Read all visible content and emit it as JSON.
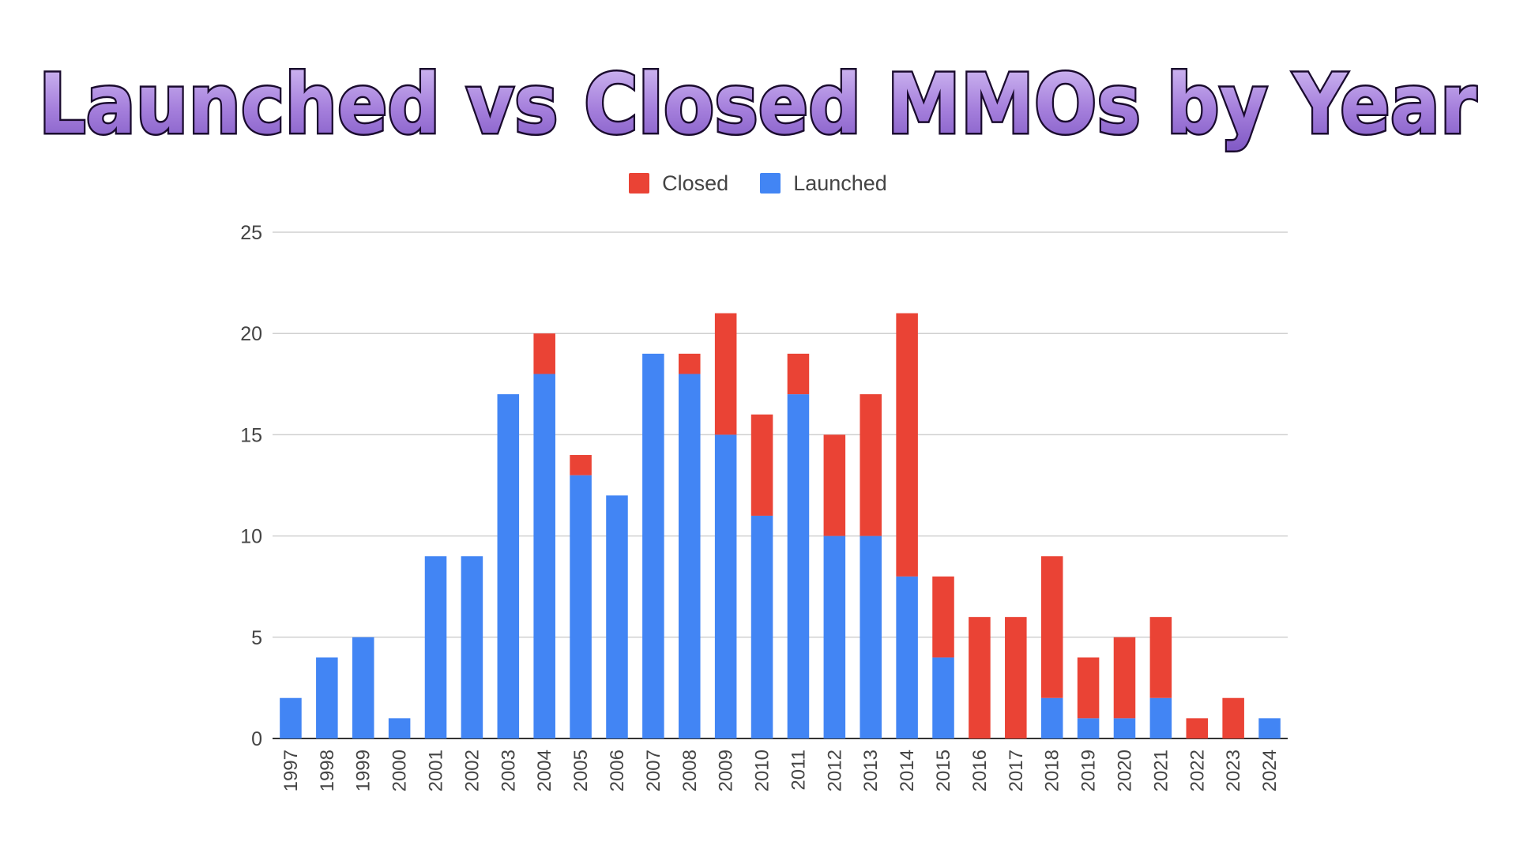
{
  "title": "Launched vs Closed MMOs by Year",
  "colors": {
    "closed": "#ea4335",
    "launched": "#4285f4",
    "title_fill": "#b292e0",
    "title_outline": "#1a0b2e"
  },
  "chart_data": {
    "type": "bar",
    "stacked": true,
    "title": "Launched vs Closed MMOs by Year",
    "xlabel": "",
    "ylabel": "",
    "ylim": [
      0,
      25
    ],
    "yticks": [
      0,
      5,
      10,
      15,
      20,
      25
    ],
    "grid": true,
    "legend": "top-center",
    "categories": [
      "1997",
      "1998",
      "1999",
      "2000",
      "2001",
      "2002",
      "2003",
      "2004",
      "2005",
      "2006",
      "2007",
      "2008",
      "2009",
      "2010",
      "2011",
      "2012",
      "2013",
      "2014",
      "2015",
      "2016",
      "2017",
      "2018",
      "2019",
      "2020",
      "2021",
      "2022",
      "2023",
      "2024"
    ],
    "series": [
      {
        "name": "Launched",
        "color": "#4285f4",
        "values": [
          2,
          4,
          5,
          1,
          9,
          9,
          17,
          18,
          13,
          12,
          19,
          18,
          15,
          11,
          17,
          10,
          10,
          8,
          4,
          0,
          0,
          2,
          1,
          1,
          2,
          0,
          0,
          1
        ]
      },
      {
        "name": "Closed",
        "color": "#ea4335",
        "values": [
          0,
          0,
          0,
          0,
          0,
          0,
          0,
          2,
          1,
          0,
          0,
          1,
          6,
          5,
          2,
          5,
          7,
          13,
          4,
          6,
          6,
          7,
          3,
          4,
          4,
          1,
          2,
          0
        ]
      }
    ],
    "legend_order": [
      "Closed",
      "Launched"
    ]
  }
}
